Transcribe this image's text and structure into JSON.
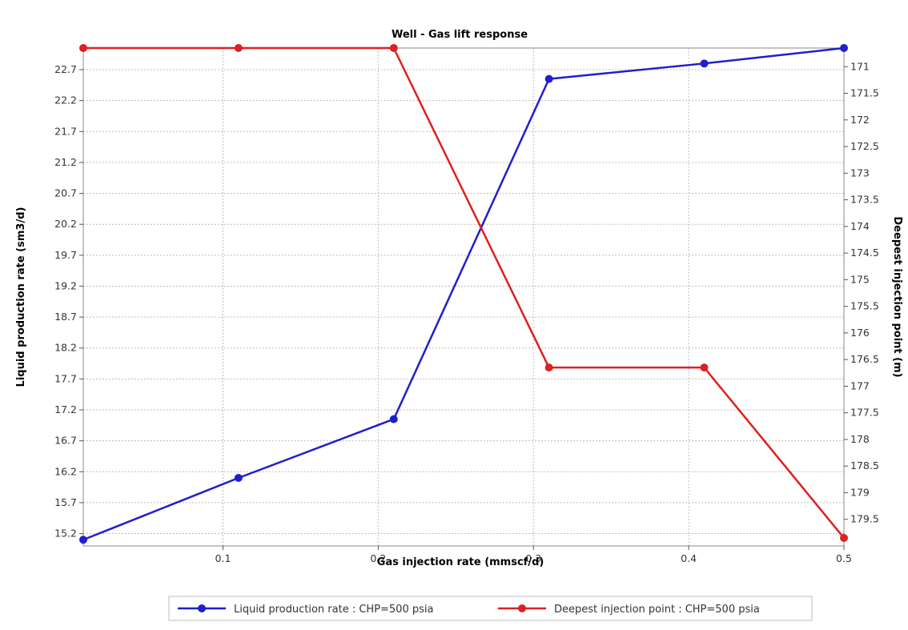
{
  "chart_data": {
    "type": "line",
    "title": "Well - Gas lift response",
    "xlabel": "Gas injection rate (mmscf/d)",
    "ylabel": "Liquid production rate (sm3/d)",
    "y2label": "Deepest injection point (m)",
    "xlim": [
      0.01,
      0.5
    ],
    "ylim": [
      15.0,
      23.05
    ],
    "y2lim": [
      180.0,
      170.65
    ],
    "x_ticks": [
      "0.1",
      "0.2",
      "0.3",
      "0.4",
      "0.5"
    ],
    "y_ticks": [
      "15.2",
      "15.7",
      "16.2",
      "16.7",
      "17.2",
      "17.7",
      "18.2",
      "18.7",
      "19.2",
      "19.7",
      "20.2",
      "20.7",
      "21.2",
      "21.7",
      "22.2",
      "22.7"
    ],
    "y2_ticks": [
      "171",
      "171.5",
      "172",
      "172.5",
      "173",
      "173.5",
      "174",
      "174.5",
      "175",
      "175.5",
      "176",
      "176.5",
      "177",
      "177.5",
      "178",
      "178.5",
      "179",
      "179.5"
    ],
    "grid": true,
    "legend_position": "bottom",
    "series": [
      {
        "name": "Liquid production rate : CHP=500 psia",
        "axis": "left",
        "color": "#1f1fcc",
        "x": [
          0.01,
          0.11,
          0.21,
          0.31,
          0.41,
          0.5
        ],
        "y": [
          15.1,
          16.1,
          17.05,
          22.55,
          22.8,
          23.05
        ]
      },
      {
        "name": "Deepest injection point : CHP=500 psia",
        "axis": "right",
        "color": "#dd2020",
        "x": [
          0.01,
          0.11,
          0.21,
          0.31,
          0.41,
          0.5
        ],
        "y": [
          170.65,
          170.65,
          170.65,
          176.65,
          176.65,
          179.85
        ]
      }
    ]
  }
}
